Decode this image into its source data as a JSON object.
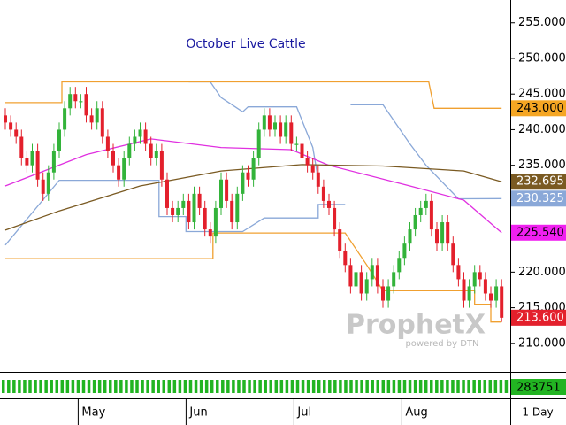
{
  "chart_data": {
    "type": "candlestick",
    "title": "October Live Cattle",
    "watermark": "ProphetX",
    "watermark_sub": "powered by DTN",
    "interval_label": "1 Day",
    "volume_label": "283751",
    "volume_color": "#22b422",
    "up_color": "#33b33a",
    "down_color": "#e3202c",
    "ylim": [
      206,
      258.2
    ],
    "yticks": [
      {
        "value": 210,
        "label": "210.000"
      },
      {
        "value": 215,
        "label": "215.000"
      },
      {
        "value": 220,
        "label": "220.000"
      },
      {
        "value": 225,
        "label": "225.000"
      },
      {
        "value": 230,
        "label": "230.000"
      },
      {
        "value": 235,
        "label": "235.000"
      },
      {
        "value": 240,
        "label": "240.000"
      },
      {
        "value": 245,
        "label": "245.000"
      },
      {
        "value": 250,
        "label": "250.000"
      },
      {
        "value": 255,
        "label": "255.000"
      }
    ],
    "categories": [
      null,
      null,
      null,
      null,
      null,
      null,
      null,
      null,
      null,
      null,
      null,
      null,
      null,
      null,
      "May",
      null,
      null,
      null,
      null,
      null,
      null,
      null,
      null,
      null,
      null,
      null,
      null,
      null,
      null,
      null,
      null,
      null,
      null,
      null,
      "Jun",
      null,
      null,
      null,
      null,
      null,
      null,
      null,
      null,
      null,
      null,
      null,
      null,
      null,
      null,
      null,
      null,
      null,
      null,
      null,
      "Jul",
      null,
      null,
      null,
      null,
      null,
      null,
      null,
      null,
      null,
      null,
      null,
      null,
      null,
      null,
      null,
      null,
      null,
      null,
      null,
      "Aug",
      null,
      null,
      null,
      null,
      null,
      null,
      null,
      null,
      null,
      null,
      null,
      null,
      null,
      null,
      null,
      null,
      null,
      null
    ],
    "open": [
      242,
      241,
      240,
      239,
      236,
      235,
      237,
      233,
      231,
      234,
      237,
      240,
      243,
      245,
      244,
      245,
      242,
      241,
      243,
      239,
      237,
      235,
      233,
      236,
      238,
      239,
      240,
      238,
      236,
      237,
      233,
      229,
      228,
      229,
      230,
      227,
      231,
      229,
      226,
      225,
      229,
      233,
      230,
      227,
      231,
      234,
      233,
      236,
      240,
      242,
      240,
      241,
      239,
      241,
      238,
      238,
      236,
      235,
      234,
      232,
      230,
      229,
      226,
      223,
      221,
      218,
      220,
      217,
      219,
      221,
      218,
      216,
      218,
      220,
      222,
      224,
      226,
      228,
      229,
      230,
      226,
      224,
      227,
      224,
      221,
      219,
      216,
      218,
      220,
      219,
      217,
      216,
      218
    ],
    "high": [
      243,
      242,
      241,
      240,
      237,
      238,
      238,
      234,
      235,
      238,
      241,
      244,
      246,
      246,
      245,
      246,
      243,
      244,
      244,
      240,
      238,
      236,
      237,
      239,
      240,
      241,
      241,
      239,
      238,
      238,
      234,
      230,
      230,
      231,
      231,
      232,
      232,
      230,
      227,
      230,
      234,
      234,
      231,
      232,
      235,
      235,
      237,
      241,
      243,
      243,
      242,
      242,
      242,
      242,
      239,
      239,
      237,
      236,
      235,
      233,
      231,
      230,
      227,
      224,
      222,
      221,
      221,
      220,
      222,
      222,
      219,
      219,
      221,
      223,
      225,
      227,
      229,
      230,
      231,
      231,
      227,
      228,
      228,
      225,
      222,
      220,
      219,
      221,
      221,
      220,
      218,
      219,
      219
    ],
    "low": [
      240,
      239,
      238,
      235,
      234,
      234,
      232,
      230,
      230,
      233,
      236,
      239,
      242,
      243,
      243,
      241,
      240,
      240,
      238,
      236,
      234,
      232,
      232,
      235,
      237,
      238,
      237,
      235,
      235,
      232,
      228,
      227,
      227,
      228,
      226,
      226,
      228,
      225,
      224,
      224,
      228,
      229,
      226,
      226,
      230,
      232,
      232,
      235,
      239,
      239,
      239,
      238,
      238,
      237,
      237,
      235,
      234,
      233,
      231,
      229,
      228,
      225,
      222,
      220,
      217,
      217,
      216,
      216,
      218,
      217,
      215,
      215,
      217,
      219,
      221,
      223,
      225,
      227,
      228,
      225,
      223,
      223,
      223,
      220,
      218,
      215,
      215,
      217,
      218,
      216,
      215,
      215,
      213
    ],
    "close": [
      241,
      240,
      239,
      236,
      235,
      237,
      233,
      231,
      234,
      237,
      240,
      243,
      245,
      244,
      244,
      242,
      241,
      243,
      239,
      237,
      235,
      233,
      236,
      238,
      239,
      240,
      238,
      236,
      237,
      233,
      229,
      228,
      229,
      230,
      227,
      231,
      229,
      226,
      225,
      229,
      233,
      230,
      227,
      231,
      234,
      233,
      236,
      240,
      242,
      240,
      241,
      239,
      241,
      238,
      238,
      236,
      235,
      234,
      232,
      230,
      229,
      226,
      223,
      221,
      218,
      220,
      217,
      219,
      221,
      218,
      216,
      218,
      220,
      222,
      224,
      226,
      228,
      229,
      230,
      226,
      224,
      227,
      224,
      221,
      219,
      216,
      218,
      220,
      219,
      217,
      216,
      218,
      213.6
    ],
    "close_label": "213.600",
    "overlays": [
      {
        "color": "#8aa8d8",
        "x": [
          0,
          10,
          28.5,
          28.5,
          33.5,
          33.5,
          44,
          48,
          58,
          58,
          63
        ],
        "values": [
          223.8,
          232.9,
          232.9,
          227.8,
          227.8,
          225.7,
          225.7,
          227.6,
          227.6,
          229.5,
          229.5
        ]
      },
      {
        "color": "#8aa8d8",
        "x": [
          34,
          38,
          40,
          44,
          45,
          54,
          57,
          58
        ],
        "values": [
          246.7,
          246.7,
          244.5,
          242.5,
          243.2,
          243.2,
          237.5,
          233
        ]
      },
      {
        "color": "#8aa8d8",
        "x": [
          64,
          70,
          75,
          78,
          84,
          92
        ],
        "values": [
          243.5,
          243.5,
          238,
          235,
          230.3,
          230.325
        ],
        "label": "230.325",
        "label_bg": "#8aa8d8",
        "label_fg": "#ffffff"
      },
      {
        "color": "#f0a030",
        "x": [
          0,
          10.5,
          10.5,
          78.5,
          79.5,
          92
        ],
        "values": [
          243.8,
          243.8,
          246.7,
          246.7,
          243,
          243
        ],
        "label": "243.000",
        "label_bg": "#f5a623",
        "label_fg": "#000000"
      },
      {
        "color": "#f0a030",
        "x": [
          0,
          38.5,
          38.5,
          63,
          67,
          70,
          87,
          87,
          90,
          90,
          92
        ],
        "values": [
          221.9,
          221.9,
          225.5,
          225.5,
          221,
          217.4,
          217.4,
          215.5,
          215.5,
          213,
          213
        ]
      },
      {
        "color": "#e030e0",
        "x": [
          0,
          15,
          27,
          40,
          53,
          60,
          75,
          85,
          92
        ],
        "values": [
          232.1,
          236.5,
          238.7,
          237.5,
          237.2,
          235,
          232.1,
          230.1,
          225.54
        ],
        "label": "225.540",
        "label_bg": "#f020f0",
        "label_fg": "#000000"
      },
      {
        "color": "#7a5a22",
        "x": [
          0,
          10,
          25,
          40,
          55,
          70,
          85,
          92
        ],
        "values": [
          225.9,
          228.6,
          232.1,
          234.2,
          235.1,
          234.9,
          234.2,
          232.695
        ],
        "label": "232.695",
        "label_bg": "#7a5a22",
        "label_fg": "#ffffff"
      }
    ]
  }
}
